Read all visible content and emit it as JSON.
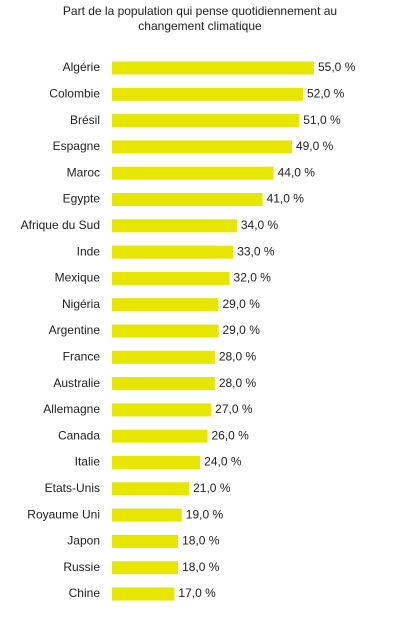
{
  "chart_data": {
    "type": "bar",
    "orientation": "horizontal",
    "title": "Part de la population qui pense quotidiennement au changement climatique",
    "categories": [
      "Algérie",
      "Colombie",
      "Brésil",
      "Espagne",
      "Maroc",
      "Egypte",
      "Afrique du Sud",
      "Inde",
      "Mexique",
      "Nigéria",
      "Argentine",
      "France",
      "Australie",
      "Allemagne",
      "Canada",
      "Italie",
      "Etats-Unis",
      "Royaume Uni",
      "Japon",
      "Russie",
      "Chine"
    ],
    "values": [
      55,
      52,
      51,
      49,
      44,
      41,
      34,
      33,
      32,
      29,
      29,
      28,
      28,
      27,
      26,
      24,
      21,
      19,
      18,
      18,
      17
    ],
    "value_labels": [
      "55,0 %",
      "52,0 %",
      "51,0 %",
      "49,0 %",
      "44,0 %",
      "41,0 %",
      "34,0 %",
      "33,0 %",
      "32,0 %",
      "29,0 %",
      "29,0 %",
      "28,0 %",
      "28,0 %",
      "27,0 %",
      "26,0 %",
      "24,0 %",
      "21,0 %",
      "19,0 %",
      "18,0 %",
      "18,0 %",
      "17,0 %"
    ],
    "color": "#e6e600"
  }
}
